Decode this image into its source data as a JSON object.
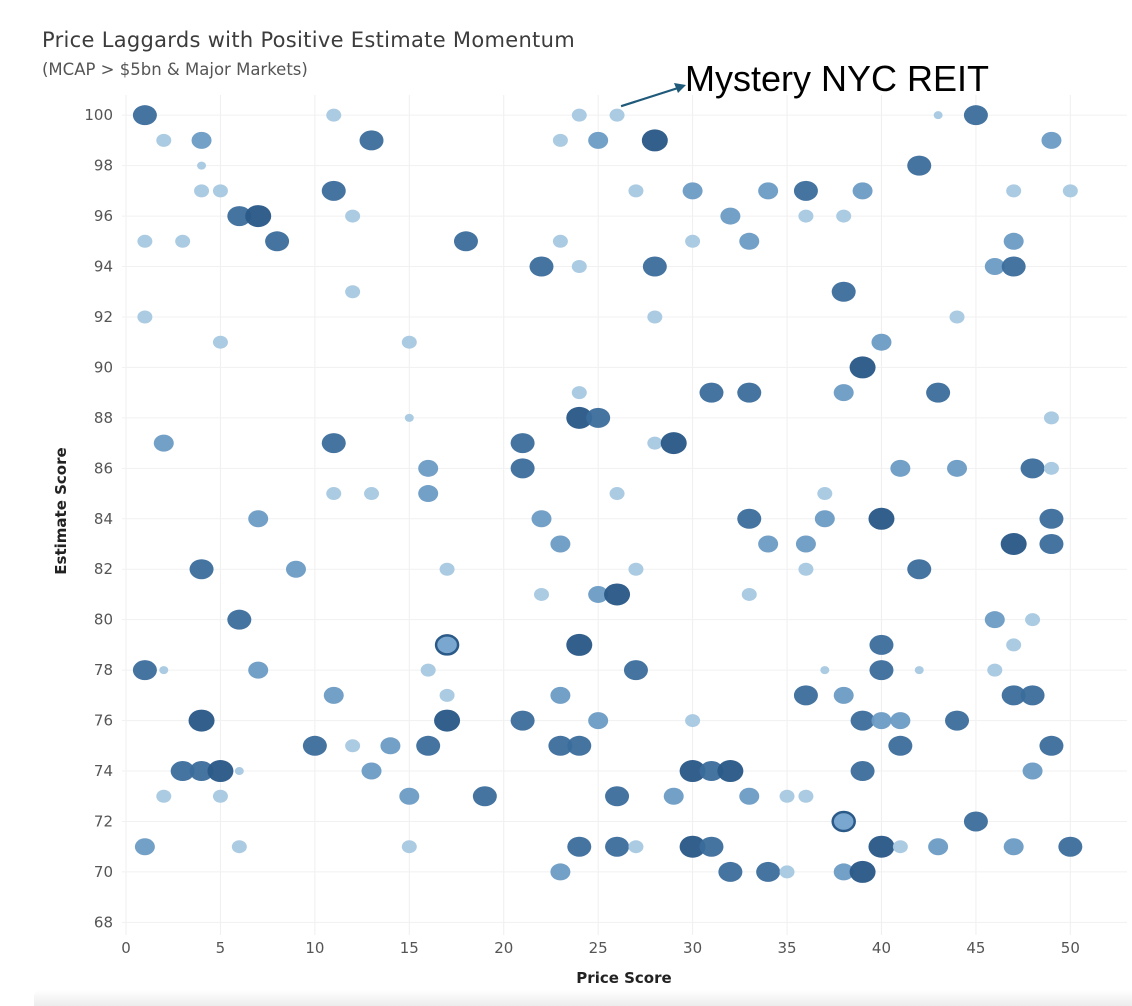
{
  "chart_data": {
    "type": "scatter",
    "title": "Price Laggards with Positive Estimate Momentum",
    "subtitle": "(MCAP > $5bn & Major Markets)",
    "xlabel": "Price Score",
    "ylabel": "Estimate Score",
    "xlim": [
      0,
      53
    ],
    "ylim": [
      67.5,
      100.8
    ],
    "x_ticks": [
      0,
      5,
      10,
      15,
      20,
      25,
      30,
      35,
      40,
      45,
      50
    ],
    "y_ticks": [
      68,
      70,
      72,
      74,
      76,
      78,
      80,
      82,
      84,
      86,
      88,
      90,
      92,
      94,
      96,
      98,
      100
    ],
    "grid": true,
    "annotation": {
      "text": "Mystery NYC REIT",
      "x": 26,
      "y": 100
    },
    "colors": {
      "light": "#a7c8e2",
      "mid": "#6b9bc4",
      "dark": "#2b5a88"
    },
    "points": [
      [
        1,
        100,
        3
      ],
      [
        11,
        100,
        1
      ],
      [
        24,
        100,
        1
      ],
      [
        26,
        100,
        1
      ],
      [
        43,
        100,
        0
      ],
      [
        45,
        100,
        3
      ],
      [
        2,
        99,
        1
      ],
      [
        4,
        99,
        2
      ],
      [
        13,
        99,
        3
      ],
      [
        23,
        99,
        1
      ],
      [
        25,
        99,
        2
      ],
      [
        28,
        99,
        4
      ],
      [
        49,
        99,
        2
      ],
      [
        4,
        98,
        0
      ],
      [
        42,
        98,
        3
      ],
      [
        4,
        97,
        1
      ],
      [
        5,
        97,
        1
      ],
      [
        11,
        97,
        3
      ],
      [
        27,
        97,
        1
      ],
      [
        30,
        97,
        2
      ],
      [
        34,
        97,
        2
      ],
      [
        36,
        97,
        3
      ],
      [
        39,
        97,
        2
      ],
      [
        47,
        97,
        1
      ],
      [
        50,
        97,
        1
      ],
      [
        6,
        96,
        3
      ],
      [
        7,
        96,
        4
      ],
      [
        12,
        96,
        1
      ],
      [
        32,
        96,
        2
      ],
      [
        36,
        96,
        1
      ],
      [
        38,
        96,
        1
      ],
      [
        1,
        95,
        1
      ],
      [
        3,
        95,
        1
      ],
      [
        8,
        95,
        3
      ],
      [
        18,
        95,
        3
      ],
      [
        23,
        95,
        1
      ],
      [
        30,
        95,
        1
      ],
      [
        33,
        95,
        2
      ],
      [
        47,
        95,
        2
      ],
      [
        22,
        94,
        3
      ],
      [
        24,
        94,
        1
      ],
      [
        28,
        94,
        3
      ],
      [
        46,
        94,
        2
      ],
      [
        47,
        94,
        3
      ],
      [
        12,
        93,
        1
      ],
      [
        38,
        93,
        3
      ],
      [
        1,
        92,
        1
      ],
      [
        28,
        92,
        1
      ],
      [
        44,
        92,
        1
      ],
      [
        5,
        91,
        1
      ],
      [
        15,
        91,
        1
      ],
      [
        40,
        91,
        2
      ],
      [
        39,
        90,
        4
      ],
      [
        24,
        89,
        1
      ],
      [
        31,
        89,
        3
      ],
      [
        33,
        89,
        3
      ],
      [
        38,
        89,
        2
      ],
      [
        43,
        89,
        3
      ],
      [
        15,
        88,
        0
      ],
      [
        24,
        88,
        4
      ],
      [
        25,
        88,
        3
      ],
      [
        49,
        88,
        1
      ],
      [
        2,
        87,
        2
      ],
      [
        11,
        87,
        3
      ],
      [
        21,
        87,
        3
      ],
      [
        28,
        87,
        1
      ],
      [
        29,
        87,
        4
      ],
      [
        16,
        86,
        2
      ],
      [
        21,
        86,
        3
      ],
      [
        41,
        86,
        2
      ],
      [
        44,
        86,
        2
      ],
      [
        48,
        86,
        3
      ],
      [
        49,
        86,
        1
      ],
      [
        11,
        85,
        1
      ],
      [
        13,
        85,
        1
      ],
      [
        16,
        85,
        2
      ],
      [
        26,
        85,
        1
      ],
      [
        37,
        85,
        1
      ],
      [
        7,
        84,
        2
      ],
      [
        22,
        84,
        2
      ],
      [
        33,
        84,
        3
      ],
      [
        37,
        84,
        2
      ],
      [
        40,
        84,
        4
      ],
      [
        49,
        84,
        3
      ],
      [
        23,
        83,
        2
      ],
      [
        34,
        83,
        2
      ],
      [
        36,
        83,
        2
      ],
      [
        47,
        83,
        4
      ],
      [
        49,
        83,
        3
      ],
      [
        4,
        82,
        3
      ],
      [
        9,
        82,
        2
      ],
      [
        17,
        82,
        1
      ],
      [
        27,
        82,
        1
      ],
      [
        36,
        82,
        1
      ],
      [
        42,
        82,
        3
      ],
      [
        22,
        81,
        1
      ],
      [
        25,
        81,
        2
      ],
      [
        26,
        81,
        4
      ],
      [
        33,
        81,
        1
      ],
      [
        6,
        80,
        3
      ],
      [
        46,
        80,
        2
      ],
      [
        48,
        80,
        1
      ],
      [
        17,
        79,
        5
      ],
      [
        24,
        79,
        4
      ],
      [
        40,
        79,
        3
      ],
      [
        47,
        79,
        1
      ],
      [
        1,
        78,
        3
      ],
      [
        2,
        78,
        0
      ],
      [
        7,
        78,
        2
      ],
      [
        16,
        78,
        1
      ],
      [
        27,
        78,
        3
      ],
      [
        37,
        78,
        0
      ],
      [
        40,
        78,
        3
      ],
      [
        42,
        78,
        0
      ],
      [
        46,
        78,
        1
      ],
      [
        11,
        77,
        2
      ],
      [
        17,
        77,
        1
      ],
      [
        23,
        77,
        2
      ],
      [
        36,
        77,
        3
      ],
      [
        38,
        77,
        2
      ],
      [
        47,
        77,
        3
      ],
      [
        48,
        77,
        3
      ],
      [
        4,
        76,
        4
      ],
      [
        17,
        76,
        4
      ],
      [
        21,
        76,
        3
      ],
      [
        25,
        76,
        2
      ],
      [
        30,
        76,
        1
      ],
      [
        39,
        76,
        3
      ],
      [
        40,
        76,
        2
      ],
      [
        41,
        76,
        2
      ],
      [
        44,
        76,
        3
      ],
      [
        10,
        75,
        3
      ],
      [
        12,
        75,
        1
      ],
      [
        14,
        75,
        2
      ],
      [
        16,
        75,
        3
      ],
      [
        23,
        75,
        3
      ],
      [
        24,
        75,
        3
      ],
      [
        41,
        75,
        3
      ],
      [
        49,
        75,
        3
      ],
      [
        3,
        74,
        3
      ],
      [
        4,
        74,
        3
      ],
      [
        5,
        74,
        4
      ],
      [
        6,
        74,
        0
      ],
      [
        13,
        74,
        2
      ],
      [
        30,
        74,
        4
      ],
      [
        31,
        74,
        3
      ],
      [
        32,
        74,
        4
      ],
      [
        39,
        74,
        3
      ],
      [
        48,
        74,
        2
      ],
      [
        2,
        73,
        1
      ],
      [
        5,
        73,
        1
      ],
      [
        15,
        73,
        2
      ],
      [
        19,
        73,
        3
      ],
      [
        26,
        73,
        3
      ],
      [
        29,
        73,
        2
      ],
      [
        33,
        73,
        2
      ],
      [
        35,
        73,
        1
      ],
      [
        36,
        73,
        1
      ],
      [
        38,
        72,
        5
      ],
      [
        45,
        72,
        3
      ],
      [
        1,
        71,
        2
      ],
      [
        6,
        71,
        1
      ],
      [
        15,
        71,
        1
      ],
      [
        24,
        71,
        3
      ],
      [
        26,
        71,
        3
      ],
      [
        27,
        71,
        1
      ],
      [
        30,
        71,
        4
      ],
      [
        31,
        71,
        3
      ],
      [
        40,
        71,
        4
      ],
      [
        41,
        71,
        1
      ],
      [
        43,
        71,
        2
      ],
      [
        47,
        71,
        2
      ],
      [
        50,
        71,
        3
      ],
      [
        23,
        70,
        2
      ],
      [
        32,
        70,
        3
      ],
      [
        34,
        70,
        3
      ],
      [
        35,
        70,
        1
      ],
      [
        38,
        70,
        2
      ],
      [
        39,
        70,
        4
      ]
    ]
  }
}
